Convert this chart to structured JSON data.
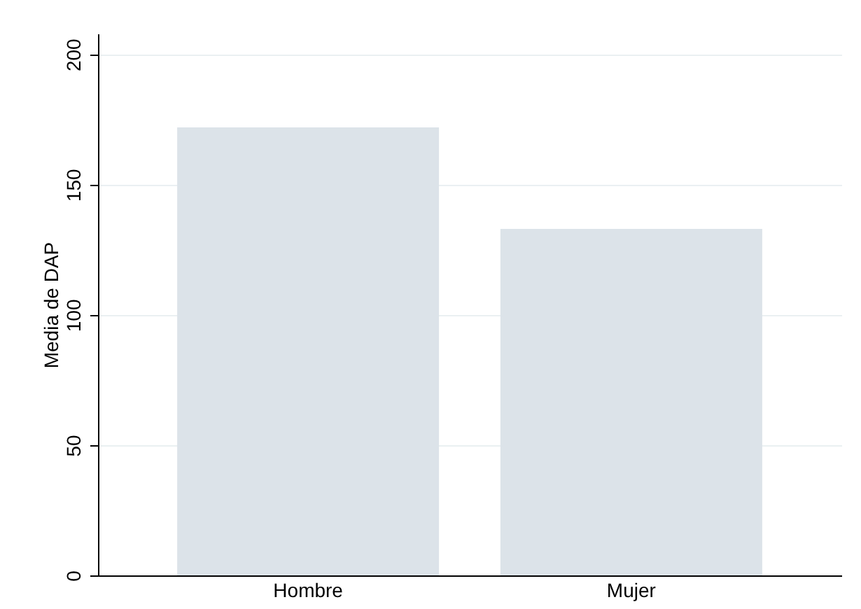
{
  "chart_data": {
    "type": "bar",
    "ylabel": "Media de DAP",
    "categories": [
      "Hombre",
      "Mujer"
    ],
    "values": [
      172,
      133
    ],
    "color": "#dce3e9",
    "ylim": [
      0,
      208
    ],
    "yticks": [
      0,
      50,
      100,
      150,
      200
    ],
    "grid": "y"
  }
}
